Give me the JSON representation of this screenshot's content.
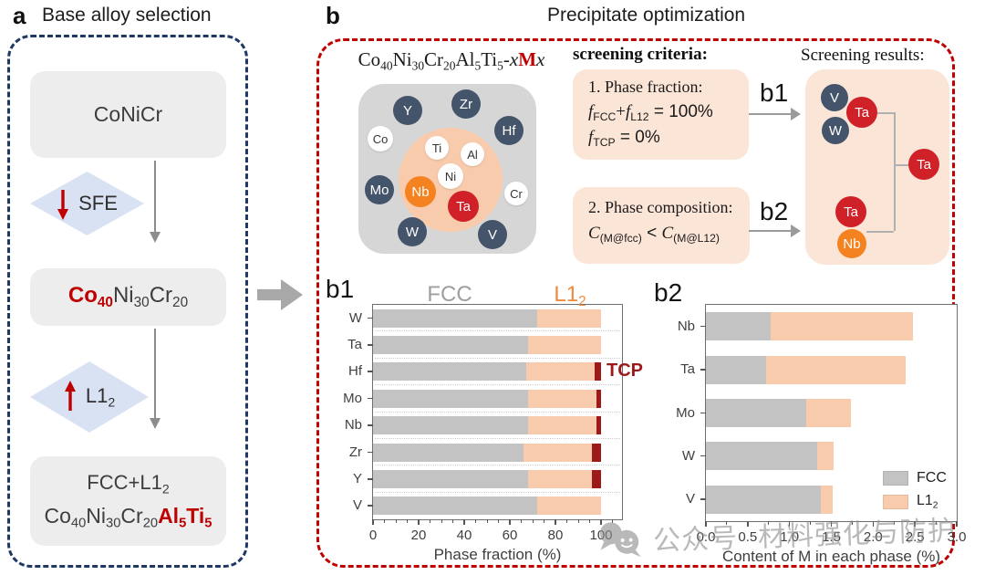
{
  "panel_a": {
    "label": "a",
    "title": "Base alloy selection",
    "nodes": {
      "start": "CoNiCr",
      "base": [
        {
          "t": "Co",
          "b": true,
          "c": "#C00000"
        },
        {
          "t": "40",
          "sub": true,
          "b": true,
          "c": "#C00000"
        },
        {
          "t": "Ni"
        },
        {
          "t": "30",
          "sub": true
        },
        {
          "t": "Cr"
        },
        {
          "t": "20",
          "sub": true
        }
      ],
      "final_line1": [
        {
          "t": "FCC+L1"
        },
        {
          "t": "2",
          "sub": true
        }
      ],
      "final_line2": [
        {
          "t": "Co"
        },
        {
          "t": "40",
          "sub": true
        },
        {
          "t": "Ni"
        },
        {
          "t": "30",
          "sub": true
        },
        {
          "t": "Cr"
        },
        {
          "t": "20",
          "sub": true
        },
        {
          "t": "Al",
          "b": true,
          "c": "#C00000"
        },
        {
          "t": "5",
          "sub": true,
          "b": true,
          "c": "#C00000"
        },
        {
          "t": "Ti",
          "b": true,
          "c": "#C00000"
        },
        {
          "t": "5",
          "sub": true,
          "b": true,
          "c": "#C00000"
        }
      ]
    },
    "decisions": {
      "sfe": {
        "arrow": "down",
        "label": [
          {
            "t": "SFE"
          }
        ]
      },
      "l12": {
        "arrow": "up",
        "label": [
          {
            "t": "L1"
          },
          {
            "t": "2",
            "sub": true
          }
        ]
      }
    }
  },
  "panel_b": {
    "label": "b",
    "title": "Precipitate optimization",
    "composition": [
      {
        "t": "Co"
      },
      {
        "t": "40",
        "sub": true
      },
      {
        "t": "Ni"
      },
      {
        "t": "30",
        "sub": true
      },
      {
        "t": "Cr"
      },
      {
        "t": "20",
        "sub": true
      },
      {
        "t": "Al"
      },
      {
        "t": "5",
        "sub": true
      },
      {
        "t": "Ti"
      },
      {
        "t": "5",
        "sub": true
      },
      {
        "t": "-"
      },
      {
        "t": "x",
        "i": true
      },
      {
        "t": "M",
        "b": true,
        "c": "#C00000"
      },
      {
        "t": "x",
        "i": true
      }
    ],
    "element_map": {
      "elements": [
        {
          "symbol": "Y",
          "style": "navy"
        },
        {
          "symbol": "Zr",
          "style": "navy"
        },
        {
          "symbol": "Hf",
          "style": "navy"
        },
        {
          "symbol": "Co",
          "style": "white"
        },
        {
          "symbol": "Ti",
          "style": "white"
        },
        {
          "symbol": "Al",
          "style": "white"
        },
        {
          "symbol": "Ni",
          "style": "white"
        },
        {
          "symbol": "Mo",
          "style": "navy"
        },
        {
          "symbol": "Nb",
          "style": "orange"
        },
        {
          "symbol": "Cr",
          "style": "white"
        },
        {
          "symbol": "Ta",
          "style": "red"
        },
        {
          "symbol": "W",
          "style": "navy"
        },
        {
          "symbol": "V",
          "style": "navy"
        }
      ]
    },
    "criteria": {
      "heading": "screening criteria:",
      "box1": {
        "title": "1. Phase fraction:",
        "lines": [
          [
            {
              "t": "f",
              "i": true
            },
            {
              "t": "FCC",
              "sub": true,
              "sans": true
            },
            {
              "t": "+"
            },
            {
              "t": "f",
              "i": true
            },
            {
              "t": "L12",
              "sub": true,
              "sans": true
            },
            {
              "t": " = 100%",
              "sans": true
            }
          ],
          [
            {
              "t": "f",
              "i": true
            },
            {
              "t": "TCP",
              "sub": true,
              "sans": true
            },
            {
              "t": " = 0%",
              "sans": true
            }
          ]
        ]
      },
      "box2": {
        "title": "2. Phase composition:",
        "lines": [
          [
            {
              "t": "C",
              "i": true
            },
            {
              "t": "(M@fcc)",
              "sub": true,
              "sans": true
            },
            {
              "t": " < ",
              "sans": true
            },
            {
              "t": "C",
              "i": true
            },
            {
              "t": "(M@L12)",
              "sub": true,
              "sans": true
            }
          ]
        ]
      },
      "arrow1": "b1",
      "arrow2": "b2"
    },
    "results": {
      "heading": "Screening results:",
      "group_b1": [
        {
          "symbol": "V",
          "style": "navy"
        },
        {
          "symbol": "Ta",
          "style": "red"
        },
        {
          "symbol": "W",
          "style": "navy"
        }
      ],
      "group_b2": [
        {
          "symbol": "Ta",
          "style": "red"
        },
        {
          "symbol": "Nb",
          "style": "orange"
        }
      ],
      "final": {
        "symbol": "Ta",
        "style": "red"
      }
    }
  },
  "chart_data": [
    {
      "id": "b1",
      "panel_label": "b1",
      "type": "bar",
      "orientation": "horizontal",
      "stacked": true,
      "categories": [
        "W",
        "Ta",
        "Hf",
        "Mo",
        "Nb",
        "Zr",
        "Y",
        "V"
      ],
      "series": [
        {
          "name": "FCC",
          "color": "#C3C3C3",
          "values": [
            72,
            68,
            67,
            68,
            68,
            66,
            68,
            72
          ]
        },
        {
          "name": "L12",
          "color": "#F8CBAD",
          "values": [
            28,
            32,
            30,
            30,
            30,
            30,
            28,
            28
          ]
        },
        {
          "name": "TCP",
          "color": "#9C1A1A",
          "values": [
            0,
            0,
            3,
            2,
            2,
            4,
            4,
            0
          ]
        }
      ],
      "header": [
        {
          "segs": [
            {
              "t": "FCC"
            }
          ],
          "color": "#9E9E9E"
        },
        {
          "segs": [
            {
              "t": "L1"
            },
            {
              "t": "2",
              "sub": true
            }
          ],
          "color": "#ED8B3E"
        }
      ],
      "annotation": "TCP",
      "xlabel": "Phase fraction (%)",
      "xlim": [
        0,
        109
      ],
      "xticks": [
        0,
        20,
        40,
        60,
        80,
        100
      ],
      "grid": "dotted-horizontal"
    },
    {
      "id": "b2",
      "panel_label": "b2",
      "type": "bar",
      "orientation": "horizontal",
      "stacked": true,
      "categories": [
        "Nb",
        "Ta",
        "Mo",
        "W",
        "V"
      ],
      "series": [
        {
          "name": "FCC",
          "color": "#C3C3C3",
          "values": [
            0.77,
            0.72,
            1.2,
            1.33,
            1.37
          ]
        },
        {
          "name": "L12",
          "color": "#F8CBAD",
          "values": [
            1.71,
            1.67,
            0.53,
            0.2,
            0.15
          ]
        }
      ],
      "legend": [
        {
          "segs": [
            {
              "t": "FCC"
            }
          ],
          "color": "#C3C3C3"
        },
        {
          "segs": [
            {
              "t": "L1"
            },
            {
              "t": "2",
              "sub": true
            }
          ],
          "color": "#F8CBAD"
        }
      ],
      "xlabel": "Content of M in each phase (%)",
      "xlim": [
        0,
        3.0
      ],
      "xticks": [
        "0.0",
        "0.5",
        "1.0",
        "1.5",
        "2.0",
        "2.5",
        "3.0"
      ],
      "legend_position": "lower right"
    }
  ],
  "watermark": {
    "icon": "wechat-icon",
    "prefix": "公众号",
    "suffix": "材料强化与防护"
  },
  "colors": {
    "panel_a_border": "#203864",
    "panel_b_border": "#C00000",
    "accent_red": "#C00000",
    "navy_circle": "#44546A",
    "red_circle": "#D02028",
    "orange_circle": "#F58220",
    "bar_gray": "#C3C3C3",
    "bar_orange": "#F8CBAD",
    "tcp_red": "#9C1A1A"
  }
}
